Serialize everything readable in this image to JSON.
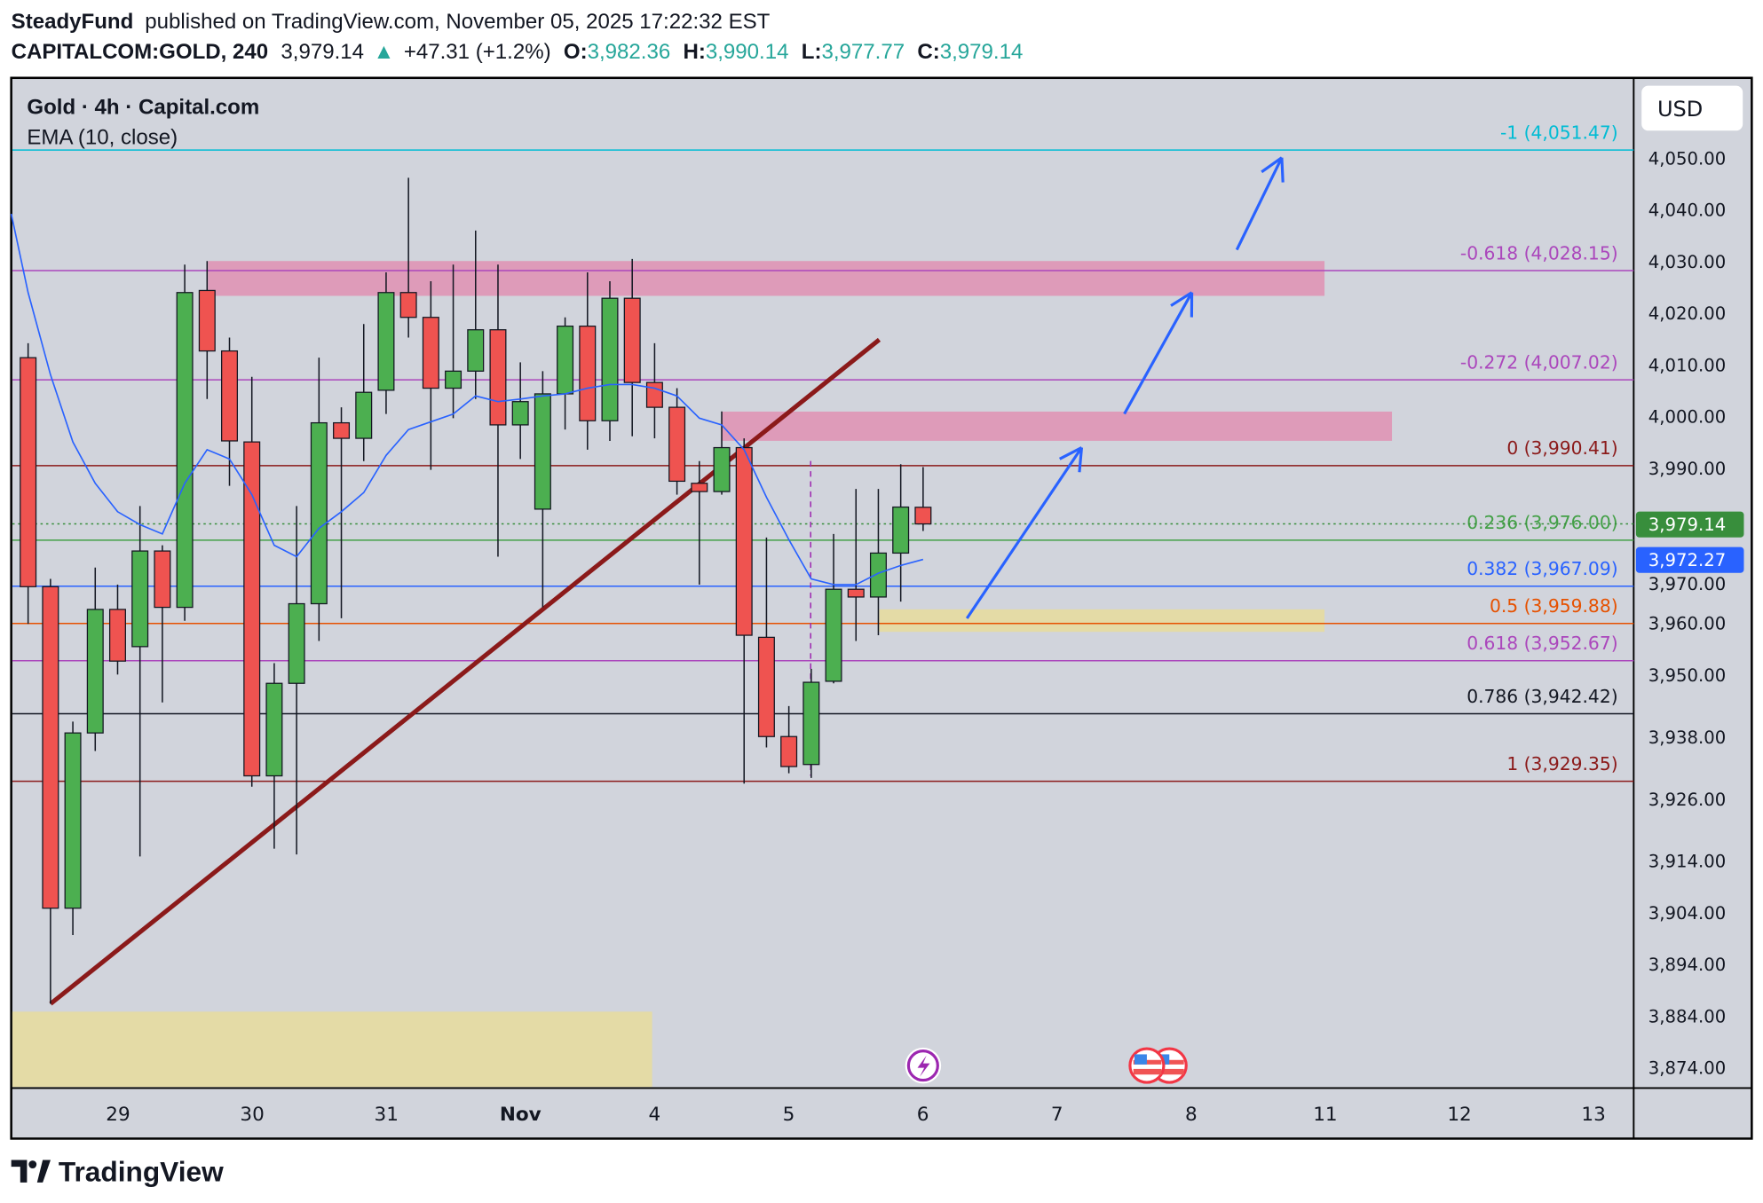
{
  "header": {
    "author": "SteadyFund",
    "published": "published on TradingView.com, November 05, 2025 17:22:32 EST",
    "symbol": "CAPITALCOM:GOLD, 240",
    "last": "3,979.14",
    "change": "+47.31 (+1.2%)",
    "o_label": "O:",
    "o": "3,982.36",
    "h_label": "H:",
    "h": "3,990.14",
    "l_label": "L:",
    "l": "3,977.77",
    "c_label": "C:",
    "c": "3,979.14"
  },
  "legend": {
    "title": "Gold · 4h · Capital.com",
    "indicator": "EMA (10, close)"
  },
  "currency": "USD",
  "price_axis": [
    "4,050.00",
    "4,040.00",
    "4,030.00",
    "4,020.00",
    "4,010.00",
    "4,000.00",
    "3,990.00",
    "3,970.00",
    "3,960.00",
    "3,950.00",
    "3,938.00",
    "3,926.00",
    "3,914.00",
    "3,904.00",
    "3,894.00",
    "3,884.00",
    "3,874.00"
  ],
  "price_axis_values": [
    4050,
    4040,
    4030,
    4020,
    4010,
    4000,
    3990,
    3970,
    3960,
    3950,
    3938,
    3926,
    3914,
    3904,
    3894,
    3884,
    3874
  ],
  "time_axis": [
    "29",
    "30",
    "31",
    "Nov",
    "4",
    "5",
    "6",
    "7",
    "8",
    "11",
    "12",
    "13"
  ],
  "last_price_label": {
    "text": "3,979.14",
    "value": 3979.14,
    "color": "#388e3c"
  },
  "ema_price_label": {
    "text": "3,972.27",
    "value": 3972.27,
    "color": "#2962ff"
  },
  "fib_levels": [
    {
      "label": "-1 (4,051.47)",
      "price": 4051.47,
      "color": "#00bcd4"
    },
    {
      "label": "-0.618 (4,028.15)",
      "price": 4028.15,
      "color": "#ab47bc"
    },
    {
      "label": "-0.272 (4,007.02)",
      "price": 4007.02,
      "color": "#ab47bc"
    },
    {
      "label": "0 (3,990.41)",
      "price": 3990.41,
      "color": "#8b1a1a"
    },
    {
      "label": "0.236 (3,976.00)",
      "price": 3976.0,
      "color": "#43a047"
    },
    {
      "label": "0.382 (3,967.09)",
      "price": 3967.09,
      "color": "#2962ff"
    },
    {
      "label": "0.5 (3,959.88)",
      "price": 3959.88,
      "color": "#e65100"
    },
    {
      "label": "0.618 (3,952.67)",
      "price": 3952.67,
      "color": "#ab47bc"
    },
    {
      "label": "0.786 (3,942.42)",
      "price": 3942.42,
      "color": "#131722"
    },
    {
      "label": "1 (3,929.35)",
      "price": 3929.35,
      "color": "#8b1a1a"
    }
  ],
  "colors": {
    "up": "#4caf50",
    "down": "#ef5350",
    "ema": "#2962ff",
    "background": "#d1d4dc",
    "trendline": "#8b1a1a",
    "zone_pink": "#e091b3",
    "zone_yellow": "#e6dca0",
    "arrow": "#2962ff"
  },
  "candles": [
    [
      4011.3,
      4014.1,
      3959.8,
      3967.0
    ],
    [
      3967.0,
      3968.5,
      3886.3,
      3904.8
    ],
    [
      3904.8,
      3940.9,
      3899.6,
      3938.7
    ],
    [
      3938.7,
      3970.7,
      3935.2,
      3962.6
    ],
    [
      3962.6,
      3967.4,
      3950.0,
      3952.6
    ],
    [
      3955.4,
      3982.6,
      3914.8,
      3973.9
    ],
    [
      3973.9,
      3975.0,
      3944.6,
      3963.0
    ],
    [
      3963.0,
      4029.3,
      3960.4,
      4023.9
    ],
    [
      4024.3,
      4030.0,
      4003.3,
      4012.6
    ],
    [
      4012.6,
      4015.2,
      3986.5,
      3995.2
    ],
    [
      3995.0,
      4007.6,
      3928.3,
      3930.4
    ],
    [
      3930.4,
      3952.2,
      3916.3,
      3948.3
    ],
    [
      3948.3,
      3982.6,
      3915.2,
      3963.7
    ],
    [
      3963.7,
      4011.3,
      3956.5,
      3998.7
    ],
    [
      3998.7,
      4001.7,
      3960.9,
      3995.7
    ],
    [
      3995.7,
      4017.8,
      3991.3,
      4004.6
    ],
    [
      4005.0,
      4027.8,
      4000.4,
      4023.9
    ],
    [
      4023.9,
      4046.1,
      4015.2,
      4019.1
    ],
    [
      4019.1,
      4026.1,
      3989.6,
      4005.4
    ],
    [
      4005.4,
      4029.3,
      3999.6,
      4008.7
    ],
    [
      4008.7,
      4035.9,
      4003.3,
      4016.7
    ],
    [
      4016.7,
      4029.3,
      3972.8,
      3998.3
    ],
    [
      3998.3,
      4010.4,
      3991.7,
      4002.8
    ],
    [
      3982.0,
      4008.7,
      3963.0,
      4004.3
    ],
    [
      4004.3,
      4019.1,
      3997.4,
      4017.4
    ],
    [
      4017.4,
      4027.8,
      3993.5,
      3999.1
    ],
    [
      3999.1,
      4026.1,
      3995.2,
      4022.8
    ],
    [
      4022.8,
      4030.4,
      3996.1,
      4006.5
    ],
    [
      4006.5,
      4014.1,
      3995.7,
      4001.7
    ],
    [
      4001.7,
      4005.4,
      3984.8,
      3987.4
    ],
    [
      3987.0,
      3991.3,
      3967.4,
      3985.4
    ],
    [
      3985.4,
      4000.9,
      3984.8,
      3993.9
    ],
    [
      3993.9,
      3995.7,
      3928.9,
      3957.6
    ],
    [
      3957.2,
      3976.5,
      3935.9,
      3938.0
    ],
    [
      3938.0,
      3943.9,
      3930.9,
      3932.2
    ],
    [
      3932.6,
      3951.1,
      3930.0,
      3948.5
    ],
    [
      3948.7,
      3977.2,
      3948.3,
      3966.5
    ],
    [
      3966.5,
      3985.9,
      3956.5,
      3965.0
    ],
    [
      3965.0,
      3985.9,
      3957.6,
      3973.5
    ],
    [
      3973.5,
      3990.7,
      3964.1,
      3982.4
    ],
    [
      3982.36,
      3990.14,
      3977.77,
      3979.14
    ]
  ],
  "ema": [
    4023.9,
    4008,
    3995,
    3987,
    3981.5,
    3979,
    3977.2,
    3987,
    3993.5,
    3991.7,
    3984.8,
    3975,
    3972.8,
    3978.3,
    3981.5,
    3985.2,
    3992.4,
    3997.4,
    3998.9,
    4000.4,
    4003.9,
    4002.8,
    4003.3,
    4003.9,
    4004.3,
    4005.4,
    4006.1,
    4006.1,
    4005.4,
    4003.9,
    3999.6,
    3998.3,
    3993.5,
    3984.3,
    3976.1,
    3968.5,
    3967.4,
    3967.4,
    3969.6,
    3971.1,
    3972.27
  ],
  "events": [
    {
      "icon": "lightning-icon"
    },
    {
      "icon": "us-flag-icon"
    },
    {
      "icon": "us-flag-icon"
    }
  ],
  "footer": {
    "brand": "TradingView"
  }
}
